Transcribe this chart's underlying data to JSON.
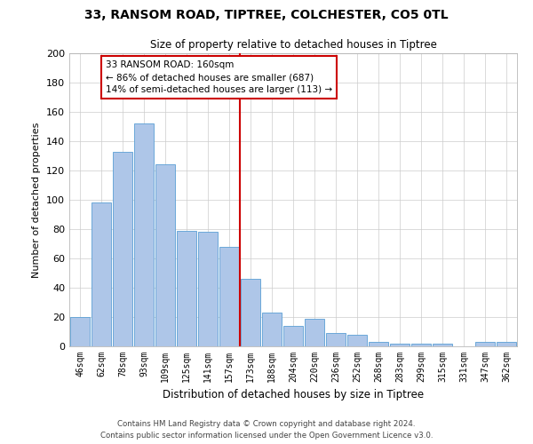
{
  "title1": "33, RANSOM ROAD, TIPTREE, COLCHESTER, CO5 0TL",
  "title2": "Size of property relative to detached houses in Tiptree",
  "xlabel": "Distribution of detached houses by size in Tiptree",
  "ylabel": "Number of detached properties",
  "categories": [
    "46sqm",
    "62sqm",
    "78sqm",
    "93sqm",
    "109sqm",
    "125sqm",
    "141sqm",
    "157sqm",
    "173sqm",
    "188sqm",
    "204sqm",
    "220sqm",
    "236sqm",
    "252sqm",
    "268sqm",
    "283sqm",
    "299sqm",
    "315sqm",
    "331sqm",
    "347sqm",
    "362sqm"
  ],
  "values": [
    20,
    98,
    133,
    152,
    124,
    79,
    78,
    68,
    46,
    23,
    14,
    19,
    9,
    8,
    3,
    2,
    2,
    2,
    0,
    3,
    3
  ],
  "bar_color": "#aec6e8",
  "bar_edge_color": "#5a9fd4",
  "vline_color": "#cc0000",
  "annotation_text": "33 RANSOM ROAD: 160sqm\n← 86% of detached houses are smaller (687)\n14% of semi-detached houses are larger (113) →",
  "annotation_box_color": "#cc0000",
  "ylim": [
    0,
    200
  ],
  "yticks": [
    0,
    20,
    40,
    60,
    80,
    100,
    120,
    140,
    160,
    180,
    200
  ],
  "footer1": "Contains HM Land Registry data © Crown copyright and database right 2024.",
  "footer2": "Contains public sector information licensed under the Open Government Licence v3.0.",
  "bg_color": "#ffffff",
  "grid_color": "#cccccc"
}
